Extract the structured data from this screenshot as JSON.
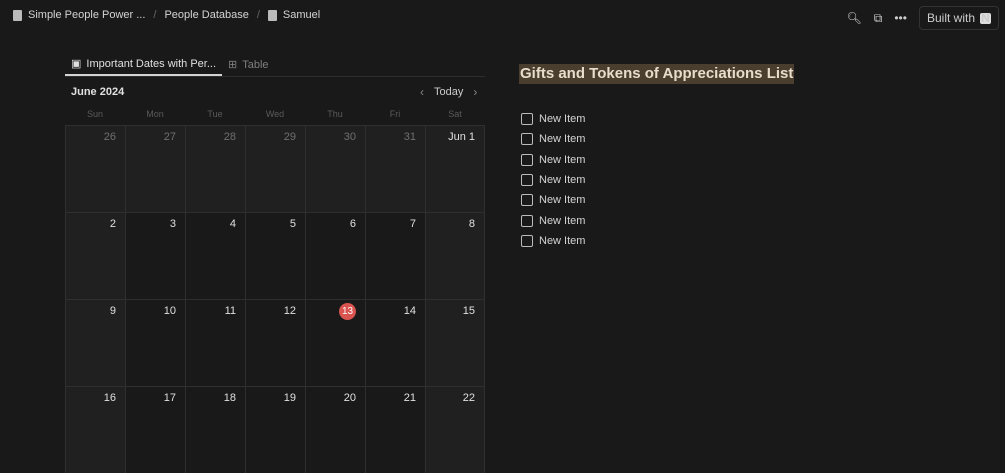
{
  "breadcrumb": [
    {
      "label": "Simple People Power ...",
      "icon": "page-icon"
    },
    {
      "label": "People Database"
    },
    {
      "label": "Samuel",
      "icon": "person-icon"
    }
  ],
  "topbar": {
    "built_with": "Built with"
  },
  "tabs": [
    {
      "label": "Important Dates with Per...",
      "icon": "calendar-icon",
      "active": true
    },
    {
      "label": "Table",
      "icon": "table-icon",
      "active": false
    }
  ],
  "calendar": {
    "month": "June 2024",
    "today_label": "Today",
    "today": "13",
    "weekdays": [
      "Sun",
      "Mon",
      "Tue",
      "Wed",
      "Thu",
      "Fri",
      "Sat"
    ],
    "weeks": [
      [
        "26",
        "27",
        "28",
        "29",
        "30",
        "31",
        "Jun 1"
      ],
      [
        "2",
        "3",
        "4",
        "5",
        "6",
        "7",
        "8"
      ],
      [
        "9",
        "10",
        "11",
        "12",
        "13",
        "14",
        "15"
      ],
      [
        "16",
        "17",
        "18",
        "19",
        "20",
        "21",
        "22"
      ]
    ],
    "today_color": "#d9534f"
  },
  "gifts": {
    "title": "Gifts and Tokens of Appreciations List",
    "highlight_color": "#4a3e2e",
    "items": [
      "New Item",
      "New Item",
      "New Item",
      "New Item",
      "New Item",
      "New Item",
      "New Item"
    ]
  }
}
